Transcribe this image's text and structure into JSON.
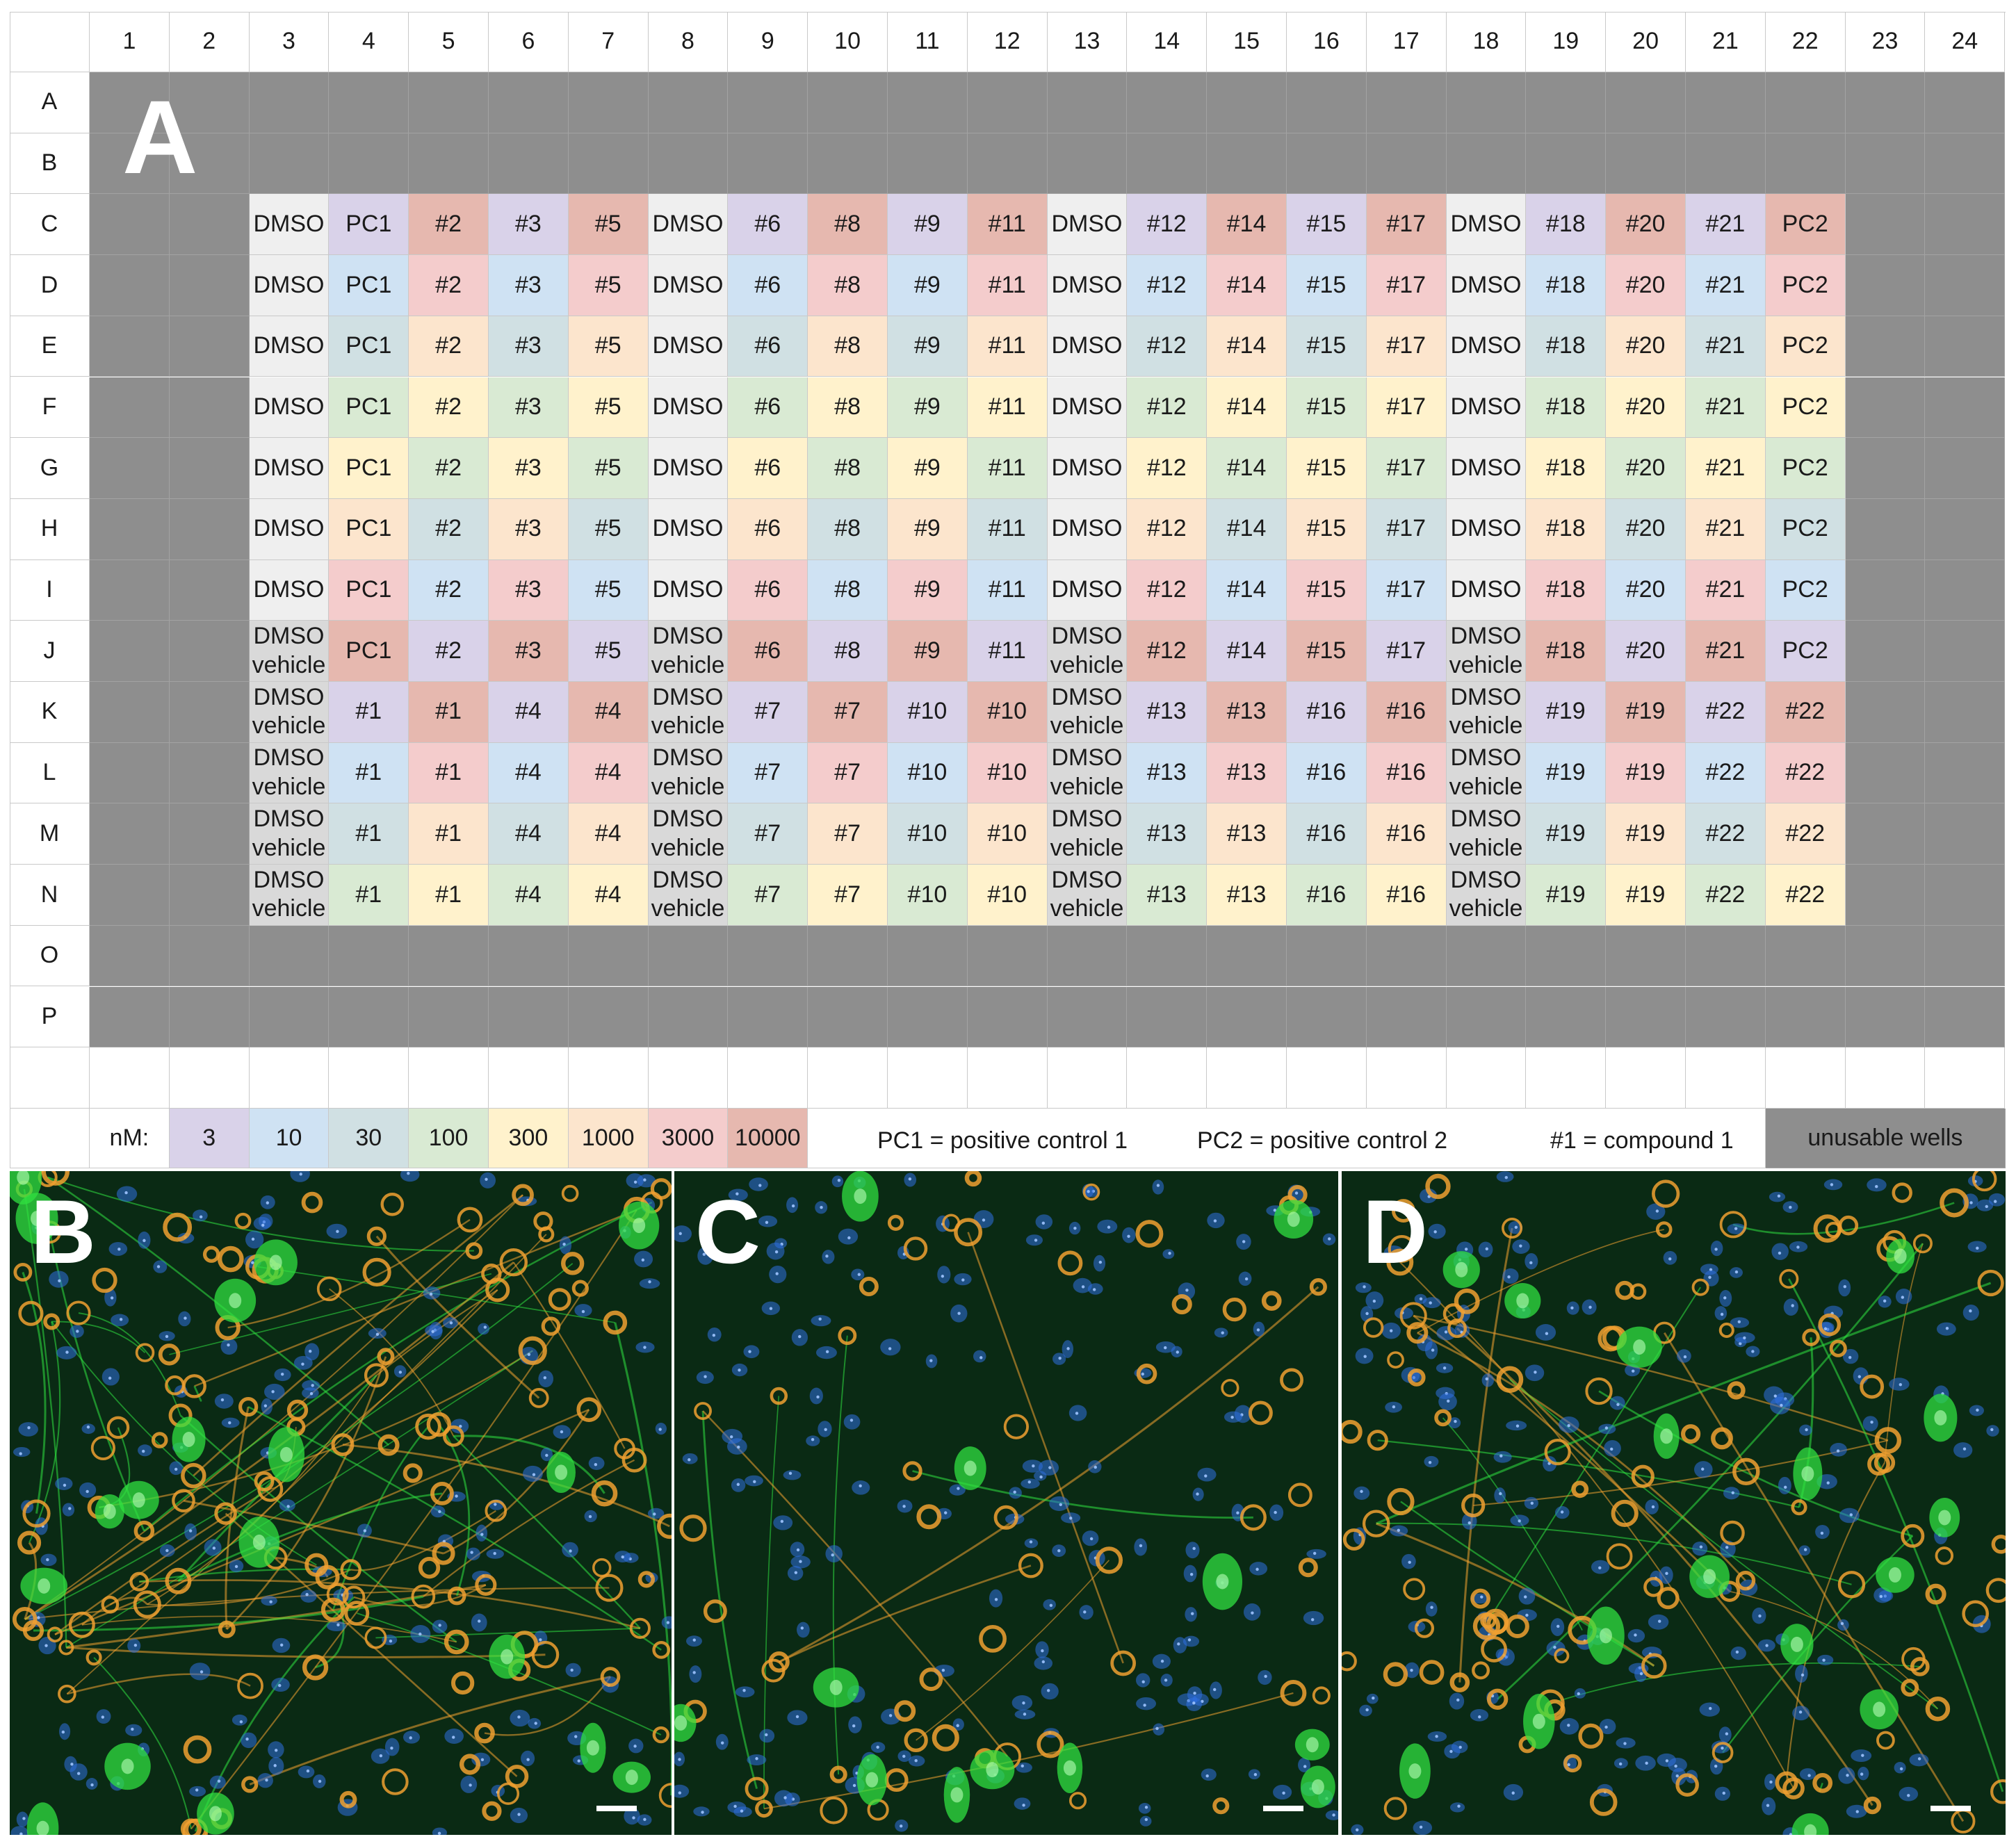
{
  "plate": {
    "columns": [
      "1",
      "2",
      "3",
      "4",
      "5",
      "6",
      "7",
      "8",
      "9",
      "10",
      "11",
      "12",
      "13",
      "14",
      "15",
      "16",
      "17",
      "18",
      "19",
      "20",
      "21",
      "22",
      "23",
      "24"
    ],
    "rows": [
      "A",
      "B",
      "C",
      "D",
      "E",
      "F",
      "G",
      "H",
      "I",
      "J",
      "K",
      "L",
      "M",
      "N",
      "O",
      "P"
    ],
    "panel_label": "A",
    "wells": {
      "C": [
        "DMSO",
        "PC1",
        "#2",
        "#3",
        "#5",
        "DMSO",
        "#6",
        "#8",
        "#9",
        "#11",
        "DMSO",
        "#12",
        "#14",
        "#15",
        "#17",
        "DMSO",
        "#18",
        "#20",
        "#21",
        "PC2"
      ],
      "D": [
        "DMSO",
        "PC1",
        "#2",
        "#3",
        "#5",
        "DMSO",
        "#6",
        "#8",
        "#9",
        "#11",
        "DMSO",
        "#12",
        "#14",
        "#15",
        "#17",
        "DMSO",
        "#18",
        "#20",
        "#21",
        "PC2"
      ],
      "E": [
        "DMSO",
        "PC1",
        "#2",
        "#3",
        "#5",
        "DMSO",
        "#6",
        "#8",
        "#9",
        "#11",
        "DMSO",
        "#12",
        "#14",
        "#15",
        "#17",
        "DMSO",
        "#18",
        "#20",
        "#21",
        "PC2"
      ],
      "F": [
        "DMSO",
        "PC1",
        "#2",
        "#3",
        "#5",
        "DMSO",
        "#6",
        "#8",
        "#9",
        "#11",
        "DMSO",
        "#12",
        "#14",
        "#15",
        "#17",
        "DMSO",
        "#18",
        "#20",
        "#21",
        "PC2"
      ],
      "G": [
        "DMSO",
        "PC1",
        "#2",
        "#3",
        "#5",
        "DMSO",
        "#6",
        "#8",
        "#9",
        "#11",
        "DMSO",
        "#12",
        "#14",
        "#15",
        "#17",
        "DMSO",
        "#18",
        "#20",
        "#21",
        "PC2"
      ],
      "H": [
        "DMSO",
        "PC1",
        "#2",
        "#3",
        "#5",
        "DMSO",
        "#6",
        "#8",
        "#9",
        "#11",
        "DMSO",
        "#12",
        "#14",
        "#15",
        "#17",
        "DMSO",
        "#18",
        "#20",
        "#21",
        "PC2"
      ],
      "I": [
        "DMSO",
        "PC1",
        "#2",
        "#3",
        "#5",
        "DMSO",
        "#6",
        "#8",
        "#9",
        "#11",
        "DMSO",
        "#12",
        "#14",
        "#15",
        "#17",
        "DMSO",
        "#18",
        "#20",
        "#21",
        "PC2"
      ],
      "J": [
        "DMSO\nvehicle",
        "PC1",
        "#2",
        "#3",
        "#5",
        "DMSO\nvehicle",
        "#6",
        "#8",
        "#9",
        "#11",
        "DMSO\nvehicle",
        "#12",
        "#14",
        "#15",
        "#17",
        "DMSO\nvehicle",
        "#18",
        "#20",
        "#21",
        "PC2"
      ],
      "K": [
        "DMSO\nvehicle",
        "#1",
        "#1",
        "#4",
        "#4",
        "DMSO\nvehicle",
        "#7",
        "#7",
        "#10",
        "#10",
        "DMSO\nvehicle",
        "#13",
        "#13",
        "#16",
        "#16",
        "DMSO\nvehicle",
        "#19",
        "#19",
        "#22",
        "#22"
      ],
      "L": [
        "DMSO\nvehicle",
        "#1",
        "#1",
        "#4",
        "#4",
        "DMSO\nvehicle",
        "#7",
        "#7",
        "#10",
        "#10",
        "DMSO\nvehicle",
        "#13",
        "#13",
        "#16",
        "#16",
        "DMSO\nvehicle",
        "#19",
        "#19",
        "#22",
        "#22"
      ],
      "M": [
        "DMSO\nvehicle",
        "#1",
        "#1",
        "#4",
        "#4",
        "DMSO\nvehicle",
        "#7",
        "#7",
        "#10",
        "#10",
        "DMSO\nvehicle",
        "#13",
        "#13",
        "#16",
        "#16",
        "DMSO\nvehicle",
        "#19",
        "#19",
        "#22",
        "#22"
      ],
      "N": [
        "DMSO\nvehicle",
        "#1",
        "#1",
        "#4",
        "#4",
        "DMSO\nvehicle",
        "#7",
        "#7",
        "#10",
        "#10",
        "DMSO\nvehicle",
        "#13",
        "#13",
        "#16",
        "#16",
        "DMSO\nvehicle",
        "#19",
        "#19",
        "#22",
        "#22"
      ]
    },
    "well_concentration_index": {
      "C": [
        null,
        0,
        7,
        0,
        7,
        null,
        0,
        7,
        0,
        7,
        null,
        0,
        7,
        0,
        7,
        null,
        0,
        7,
        0,
        7
      ],
      "D": [
        null,
        1,
        6,
        1,
        6,
        null,
        1,
        6,
        1,
        6,
        null,
        1,
        6,
        1,
        6,
        null,
        1,
        6,
        1,
        6
      ],
      "E": [
        null,
        2,
        5,
        2,
        5,
        null,
        2,
        5,
        2,
        5,
        null,
        2,
        5,
        2,
        5,
        null,
        2,
        5,
        2,
        5
      ],
      "F": [
        null,
        3,
        4,
        3,
        4,
        null,
        3,
        4,
        3,
        4,
        null,
        3,
        4,
        3,
        4,
        null,
        3,
        4,
        3,
        4
      ],
      "G": [
        null,
        4,
        3,
        4,
        3,
        null,
        4,
        3,
        4,
        3,
        null,
        4,
        3,
        4,
        3,
        null,
        4,
        3,
        4,
        3
      ],
      "H": [
        null,
        5,
        2,
        5,
        2,
        null,
        5,
        2,
        5,
        2,
        null,
        5,
        2,
        5,
        2,
        null,
        5,
        2,
        5,
        2
      ],
      "I": [
        null,
        6,
        1,
        6,
        1,
        null,
        6,
        1,
        6,
        1,
        null,
        6,
        1,
        6,
        1,
        null,
        6,
        1,
        6,
        1
      ],
      "J": [
        null,
        7,
        0,
        7,
        0,
        null,
        7,
        0,
        7,
        0,
        null,
        7,
        0,
        7,
        0,
        null,
        7,
        0,
        7,
        0
      ],
      "K": [
        null,
        0,
        7,
        0,
        7,
        null,
        0,
        7,
        0,
        7,
        null,
        0,
        7,
        0,
        7,
        null,
        0,
        7,
        0,
        7
      ],
      "L": [
        null,
        1,
        6,
        1,
        6,
        null,
        1,
        6,
        1,
        6,
        null,
        1,
        6,
        1,
        6,
        null,
        1,
        6,
        1,
        6
      ],
      "M": [
        null,
        2,
        5,
        2,
        5,
        null,
        2,
        5,
        2,
        5,
        null,
        2,
        5,
        2,
        5,
        null,
        2,
        5,
        2,
        5
      ],
      "N": [
        null,
        3,
        4,
        3,
        4,
        null,
        3,
        4,
        3,
        4,
        null,
        3,
        4,
        3,
        4,
        null,
        3,
        4,
        3,
        4
      ]
    },
    "well_dmso_top": "C",
    "well_dmso_vehicle_from": "J"
  },
  "legend": {
    "unit_label": "nM:",
    "concentrations": [
      "3",
      "10",
      "30",
      "100",
      "300",
      "1000",
      "3000",
      "10000"
    ],
    "concentration_colors": [
      "#d9d2e9",
      "#cfe2f3",
      "#d0e0e3",
      "#d9ead3",
      "#fff2cc",
      "#fce5cd",
      "#f4cccc",
      "#e6b8af"
    ],
    "pc1_note": "PC1 = positive control 1",
    "pc2_note": "PC2 = positive control 2",
    "compound_note": "#1 = compound 1",
    "unusable_label": "unusable wells"
  },
  "colors": {
    "unusable": "#8e8e8e",
    "dmso": "#efefef",
    "dmso_vehicle": "#d9d9d9",
    "micrograph_bg": "#0a2a14",
    "nuclei": "#2f6fe0",
    "mitochondria": "#f0a030",
    "neuron_marker": "#30e040"
  },
  "micrographs": [
    {
      "label": "B"
    },
    {
      "label": "C"
    },
    {
      "label": "D"
    }
  ]
}
